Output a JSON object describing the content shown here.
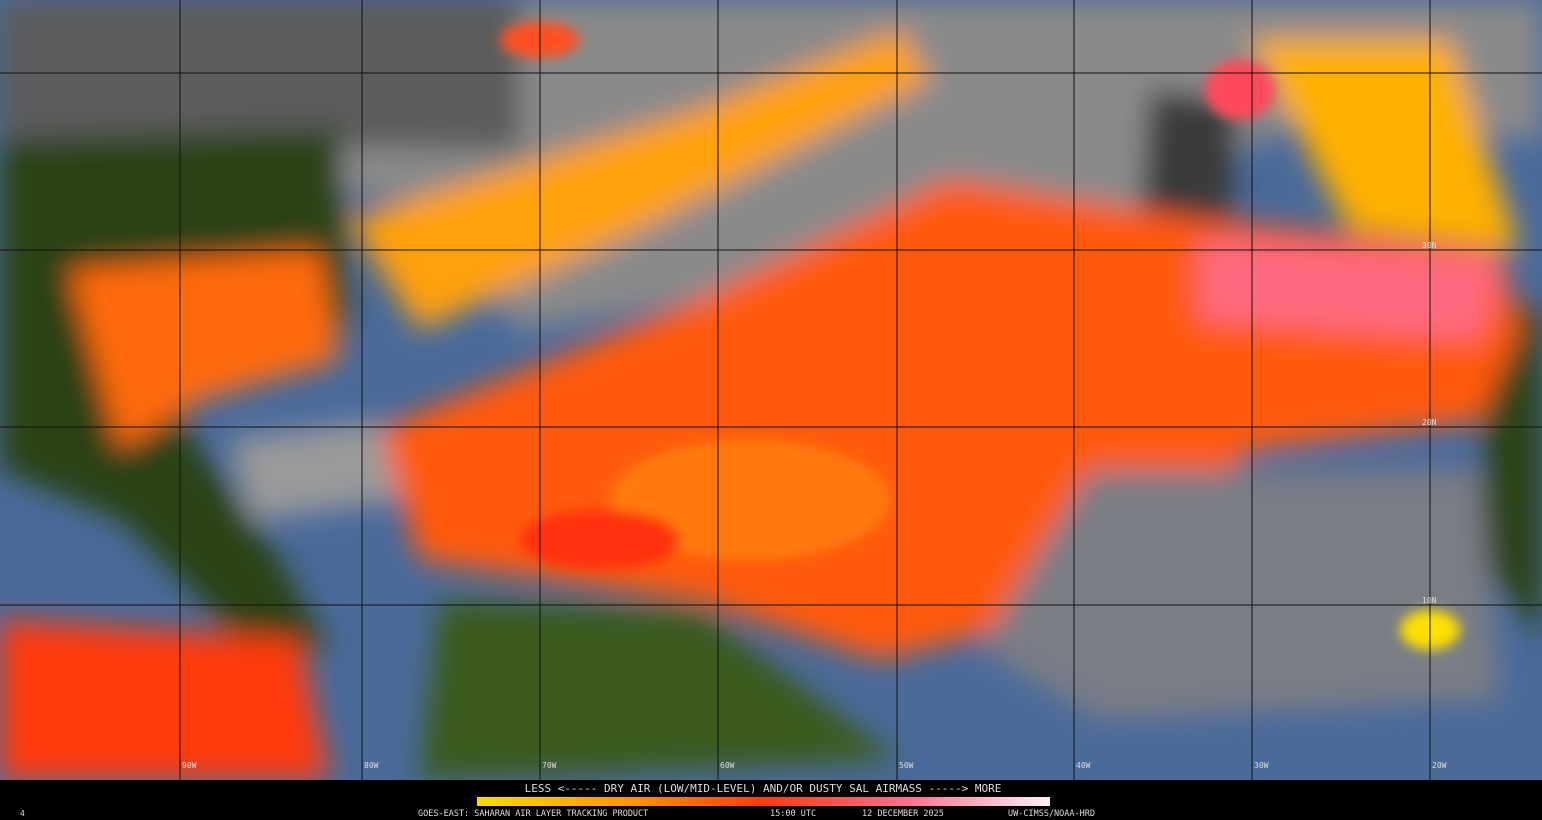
{
  "legend": {
    "text": "LESS <----- DRY AIR (LOW/MID-LEVEL) AND/OR DUSTY SAL AIRMASS -----> MORE"
  },
  "footer": {
    "product": "GOES-EAST: SAHARAN AIR LAYER TRACKING PRODUCT",
    "time": "15:00 UTC",
    "date": "12 DECEMBER 2025",
    "credit": "UW-CIMSS/NOAA-HRD",
    "corner": "4"
  },
  "grid_labels": {
    "longitudes": [
      "90W",
      "80W",
      "70W",
      "60W",
      "50W",
      "40W",
      "30W",
      "20W"
    ],
    "latitudes": [
      "30N",
      "20N",
      "10N"
    ]
  }
}
